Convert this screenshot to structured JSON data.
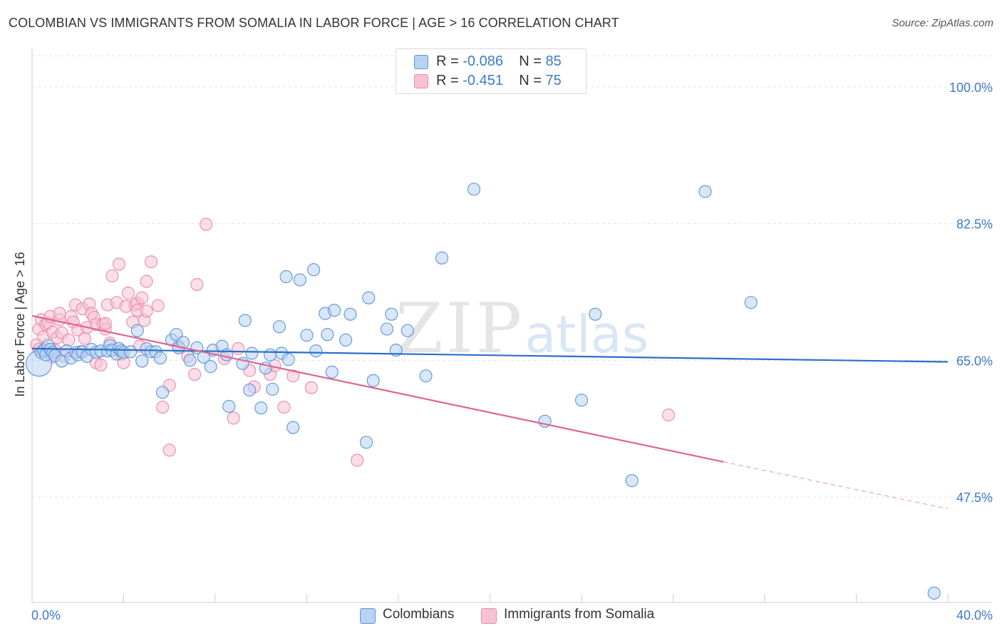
{
  "title": "COLOMBIAN VS IMMIGRANTS FROM SOMALIA IN LABOR FORCE | AGE > 16 CORRELATION CHART",
  "source": "Source: ZipAtlas.com",
  "watermark": {
    "zip": "ZIP",
    "atlas": "atlas"
  },
  "legend_top": {
    "rows": [
      {
        "r_label": "R = ",
        "r_value": "-0.086",
        "n_label": "N = ",
        "n_value": "85"
      },
      {
        "r_label": "R = ",
        "r_value": " -0.451",
        "n_label": "N = ",
        "n_value": "75"
      }
    ]
  },
  "legend_bottom": [
    "Colombians",
    "Immigrants from Somalia"
  ],
  "colors": {
    "blue_fill": "#b8d2f2",
    "blue_stroke": "#5b95d8",
    "blue_line": "#2a6fc9",
    "pink_fill": "#f8c2d3",
    "pink_stroke": "#e98aab",
    "pink_line": "#e06490",
    "tick_label": "#3d7ac9",
    "grid": "#e3e3e3"
  },
  "chart_data": {
    "type": "scatter",
    "title": "COLOMBIAN VS IMMIGRANTS FROM SOMALIA IN LABOR FORCE | AGE > 16 CORRELATION CHART",
    "xlabel": "",
    "ylabel": "In Labor Force | Age > 16",
    "xlim": [
      0,
      40
    ],
    "ylim": [
      34,
      104
    ],
    "x_tick_labels": [
      "0.0%",
      "40.0%"
    ],
    "y_ticks": [
      47.5,
      65.0,
      82.5,
      100.0
    ],
    "y_tick_labels": [
      "47.5%",
      "65.0%",
      "82.5%",
      "100.0%"
    ],
    "grid": true,
    "legend_position": "top-center",
    "series": [
      {
        "name": "Colombians",
        "R": -0.086,
        "N": 85,
        "trend": {
          "x": [
            0,
            40
          ],
          "y": [
            66.5,
            64.8
          ]
        },
        "points": [
          [
            0.3,
            64.6
          ],
          [
            0.4,
            66.0
          ],
          [
            0.5,
            66.3
          ],
          [
            0.6,
            65.7
          ],
          [
            0.7,
            66.9
          ],
          [
            0.8,
            66.4
          ],
          [
            0.9,
            66.0
          ],
          [
            1.0,
            65.6
          ],
          [
            1.3,
            64.9
          ],
          [
            1.5,
            66.2
          ],
          [
            1.7,
            65.3
          ],
          [
            1.9,
            66.0
          ],
          [
            2.0,
            65.7
          ],
          [
            2.2,
            66.1
          ],
          [
            2.4,
            65.5
          ],
          [
            2.6,
            66.4
          ],
          [
            2.8,
            66.0
          ],
          [
            3.0,
            66.2
          ],
          [
            3.3,
            66.2
          ],
          [
            3.4,
            66.9
          ],
          [
            3.5,
            66.3
          ],
          [
            3.7,
            65.8
          ],
          [
            3.8,
            66.5
          ],
          [
            3.9,
            66.2
          ],
          [
            4.0,
            66.0
          ],
          [
            4.3,
            66.1
          ],
          [
            4.6,
            68.8
          ],
          [
            4.8,
            64.9
          ],
          [
            5.0,
            66.5
          ],
          [
            5.2,
            66.1
          ],
          [
            5.4,
            66.1
          ],
          [
            5.6,
            65.3
          ],
          [
            5.7,
            60.9
          ],
          [
            6.1,
            67.6
          ],
          [
            6.3,
            68.3
          ],
          [
            6.4,
            66.6
          ],
          [
            6.6,
            67.3
          ],
          [
            6.9,
            65.0
          ],
          [
            7.2,
            66.6
          ],
          [
            7.5,
            65.4
          ],
          [
            7.8,
            64.2
          ],
          [
            7.9,
            66.3
          ],
          [
            8.3,
            66.8
          ],
          [
            8.5,
            65.7
          ],
          [
            8.6,
            59.1
          ],
          [
            9.2,
            64.6
          ],
          [
            9.3,
            70.1
          ],
          [
            9.5,
            61.2
          ],
          [
            9.6,
            65.9
          ],
          [
            10.0,
            58.9
          ],
          [
            10.2,
            64.0
          ],
          [
            10.4,
            65.7
          ],
          [
            10.5,
            61.3
          ],
          [
            10.8,
            69.3
          ],
          [
            10.9,
            65.9
          ],
          [
            11.1,
            75.7
          ],
          [
            11.2,
            65.1
          ],
          [
            11.4,
            56.4
          ],
          [
            11.7,
            75.3
          ],
          [
            12.0,
            68.2
          ],
          [
            12.3,
            76.6
          ],
          [
            12.4,
            66.2
          ],
          [
            12.8,
            71.0
          ],
          [
            12.9,
            68.3
          ],
          [
            13.1,
            63.5
          ],
          [
            13.2,
            71.4
          ],
          [
            13.7,
            67.6
          ],
          [
            13.9,
            70.9
          ],
          [
            14.6,
            54.5
          ],
          [
            14.7,
            73.0
          ],
          [
            14.9,
            62.4
          ],
          [
            15.5,
            69.0
          ],
          [
            15.7,
            70.9
          ],
          [
            15.9,
            66.3
          ],
          [
            16.4,
            68.8
          ],
          [
            17.2,
            63.0
          ],
          [
            17.9,
            78.1
          ],
          [
            19.3,
            86.9
          ],
          [
            22.4,
            57.2
          ],
          [
            24.0,
            59.9
          ],
          [
            24.6,
            70.9
          ],
          [
            26.2,
            49.6
          ],
          [
            29.4,
            86.6
          ],
          [
            31.4,
            72.4
          ],
          [
            39.4,
            35.2
          ]
        ]
      },
      {
        "name": "Immigrants from Somalia",
        "R": -0.451,
        "N": 75,
        "trend": {
          "x": [
            0,
            30.2
          ],
          "y": [
            70.7,
            52.0
          ]
        },
        "trend_dashed": {
          "x": [
            30.2,
            40
          ],
          "y": [
            52.0,
            46.0
          ]
        },
        "points": [
          [
            0.2,
            67.0
          ],
          [
            0.3,
            66.4
          ],
          [
            0.3,
            69.0
          ],
          [
            0.4,
            70.2
          ],
          [
            0.5,
            68.0
          ],
          [
            0.6,
            69.6
          ],
          [
            0.6,
            66.5
          ],
          [
            0.7,
            69.8
          ],
          [
            0.8,
            70.6
          ],
          [
            0.9,
            65.4
          ],
          [
            0.9,
            68.6
          ],
          [
            1.0,
            66.3
          ],
          [
            1.1,
            67.9
          ],
          [
            1.2,
            70.2
          ],
          [
            1.2,
            71.0
          ],
          [
            1.3,
            68.5
          ],
          [
            1.4,
            65.5
          ],
          [
            1.6,
            67.6
          ],
          [
            1.7,
            70.6
          ],
          [
            1.8,
            69.9
          ],
          [
            1.9,
            72.1
          ],
          [
            2.0,
            68.9
          ],
          [
            2.1,
            66.1
          ],
          [
            2.2,
            71.6
          ],
          [
            2.3,
            67.8
          ],
          [
            2.4,
            69.2
          ],
          [
            2.5,
            72.2
          ],
          [
            2.6,
            71.0
          ],
          [
            2.7,
            70.5
          ],
          [
            2.8,
            69.6
          ],
          [
            2.8,
            64.7
          ],
          [
            3.0,
            64.4
          ],
          [
            3.1,
            69.6
          ],
          [
            3.2,
            69.0
          ],
          [
            3.2,
            69.7
          ],
          [
            3.3,
            72.1
          ],
          [
            3.4,
            67.2
          ],
          [
            3.5,
            75.8
          ],
          [
            3.7,
            72.4
          ],
          [
            3.8,
            77.3
          ],
          [
            3.9,
            65.8
          ],
          [
            4.0,
            64.7
          ],
          [
            4.1,
            71.9
          ],
          [
            4.2,
            73.6
          ],
          [
            4.4,
            69.9
          ],
          [
            4.5,
            72.1
          ],
          [
            4.6,
            72.3
          ],
          [
            4.6,
            71.4
          ],
          [
            4.7,
            66.8
          ],
          [
            4.8,
            73.0
          ],
          [
            4.9,
            70.1
          ],
          [
            5.0,
            71.3
          ],
          [
            5.0,
            75.1
          ],
          [
            5.2,
            77.6
          ],
          [
            5.5,
            72.0
          ],
          [
            5.7,
            59.0
          ],
          [
            6.0,
            61.8
          ],
          [
            6.0,
            53.5
          ],
          [
            6.4,
            66.8
          ],
          [
            6.8,
            65.5
          ],
          [
            7.1,
            63.2
          ],
          [
            7.2,
            74.7
          ],
          [
            7.6,
            82.4
          ],
          [
            8.4,
            65.2
          ],
          [
            8.8,
            57.6
          ],
          [
            9.0,
            66.5
          ],
          [
            9.5,
            63.7
          ],
          [
            9.7,
            61.6
          ],
          [
            10.4,
            63.2
          ],
          [
            10.6,
            64.3
          ],
          [
            11.0,
            59.0
          ],
          [
            11.4,
            63.0
          ],
          [
            12.2,
            61.5
          ],
          [
            14.2,
            52.2
          ],
          [
            27.8,
            58.0
          ]
        ]
      }
    ]
  }
}
